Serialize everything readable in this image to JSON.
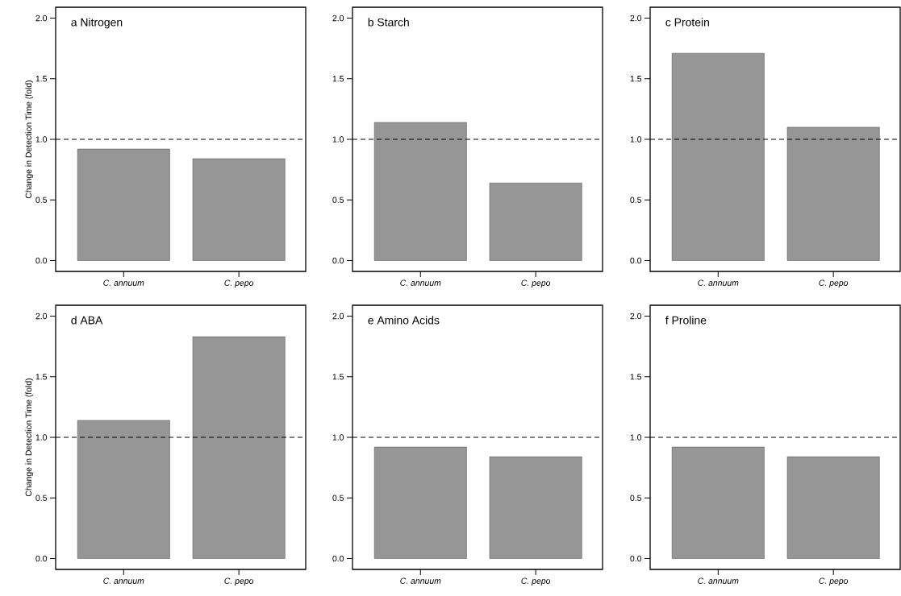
{
  "chart_data": [
    {
      "type": "bar",
      "title": "a Nitrogen",
      "ylabel": "Change in Detection Time (fold)",
      "categories": [
        "*C. annuum*",
        "*C. pepo*"
      ],
      "values": [
        0.92,
        0.84
      ],
      "color": "#969696",
      "ylim": [
        -0.09,
        2.09
      ],
      "yticks": [
        {
          "value": 0,
          "label": "0.0"
        },
        {
          "value": 0.5,
          "label": "0.5"
        },
        {
          "value": 1,
          "label": "1.0"
        },
        {
          "value": 1.5,
          "label": "1.5"
        },
        {
          "value": 2,
          "label": "2.0"
        }
      ],
      "ref_lines": [
        {
          "axis": "y",
          "value": 1,
          "line_style": "dashed"
        }
      ]
    },
    {
      "type": "bar",
      "title": "b Starch",
      "categories": [
        "*C. annuum*",
        "*C. pepo*"
      ],
      "values": [
        1.14,
        0.64
      ],
      "color": "#969696",
      "ylim": [
        -0.09,
        2.09
      ],
      "yticks": [
        {
          "value": 0,
          "label": "0.0"
        },
        {
          "value": 0.5,
          "label": "0.5"
        },
        {
          "value": 1,
          "label": "1.0"
        },
        {
          "value": 1.5,
          "label": "1.5"
        },
        {
          "value": 2,
          "label": "2.0"
        }
      ],
      "ref_lines": [
        {
          "axis": "y",
          "value": 1,
          "line_style": "dashed"
        }
      ]
    },
    {
      "type": "bar",
      "title": "c Protein",
      "categories": [
        "*C. annuum*",
        "*C. pepo*"
      ],
      "values": [
        1.71,
        1.1
      ],
      "color": "#969696",
      "ylim": [
        -0.09,
        2.09
      ],
      "yticks": [
        {
          "value": 0,
          "label": "0.0"
        },
        {
          "value": 0.5,
          "label": "0.5"
        },
        {
          "value": 1,
          "label": "1.0"
        },
        {
          "value": 1.5,
          "label": "1.5"
        },
        {
          "value": 2,
          "label": "2.0"
        }
      ],
      "ref_lines": [
        {
          "axis": "y",
          "value": 1,
          "line_style": "dashed"
        }
      ]
    },
    {
      "type": "bar",
      "title": "d ABA",
      "ylabel": "Change in Detection Time (fold)",
      "categories": [
        "*C. annuum*",
        "*C. pepo*"
      ],
      "values": [
        1.14,
        1.83
      ],
      "color": "#969696",
      "ylim": [
        -0.09,
        2.09
      ],
      "yticks": [
        {
          "value": 0,
          "label": "0.0"
        },
        {
          "value": 0.5,
          "label": "0.5"
        },
        {
          "value": 1,
          "label": "1.0"
        },
        {
          "value": 1.5,
          "label": "1.5"
        },
        {
          "value": 2,
          "label": "2.0"
        }
      ],
      "ref_lines": [
        {
          "axis": "y",
          "value": 1,
          "line_style": "dashed"
        }
      ]
    },
    {
      "type": "bar",
      "title": "e Amino Acids",
      "categories": [
        "*C. annuum*",
        "*C. pepo*"
      ],
      "values": [
        0.92,
        0.84
      ],
      "color": "#969696",
      "ylim": [
        -0.09,
        2.09
      ],
      "yticks": [
        {
          "value": 0,
          "label": "0.0"
        },
        {
          "value": 0.5,
          "label": "0.5"
        },
        {
          "value": 1,
          "label": "1.0"
        },
        {
          "value": 1.5,
          "label": "1.5"
        },
        {
          "value": 2,
          "label": "2.0"
        }
      ],
      "ref_lines": [
        {
          "axis": "y",
          "value": 1,
          "line_style": "dashed"
        }
      ]
    },
    {
      "type": "bar",
      "title": "f Proline",
      "categories": [
        "*C. annuum*",
        "*C. pepo*"
      ],
      "values": [
        0.92,
        0.84
      ],
      "color": "#969696",
      "ylim": [
        -0.09,
        2.09
      ],
      "yticks": [
        {
          "value": 0,
          "label": "0.0"
        },
        {
          "value": 0.5,
          "label": "0.5"
        },
        {
          "value": 1,
          "label": "1.0"
        },
        {
          "value": 1.5,
          "label": "1.5"
        },
        {
          "value": 2,
          "label": "2.0"
        }
      ],
      "ref_lines": [
        {
          "axis": "y",
          "value": 1,
          "line_style": "dashed"
        }
      ]
    }
  ]
}
